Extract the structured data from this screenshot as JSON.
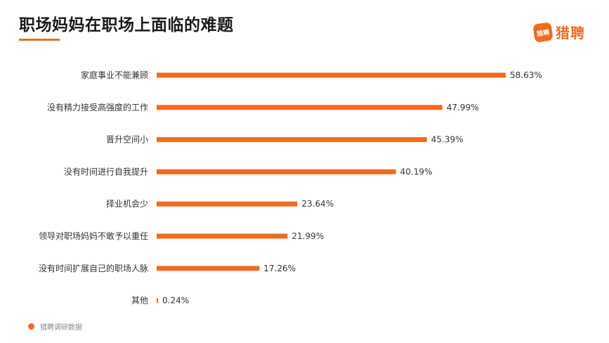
{
  "title": "职场妈妈在职场上面临的难题",
  "logo": {
    "badge_text": "猎聘",
    "text": "猎聘"
  },
  "footer": {
    "source": "猎聘调研数据"
  },
  "colors": {
    "accent": "#f26b1d",
    "title": "#1a1a1a",
    "label": "#333333"
  },
  "chart_data": {
    "type": "bar",
    "orientation": "horizontal",
    "title": "职场妈妈在职场上面临的难题",
    "xlabel": "",
    "ylabel": "",
    "unit": "%",
    "xlim": [
      0,
      58.63
    ],
    "grid": false,
    "legend": "none",
    "categories": [
      "家庭事业不能兼顾",
      "没有精力接受高强度的工作",
      "晋升空间小",
      "没有时间进行自我提升",
      "择业机会少",
      "领导对职场妈妈不敢予以重任",
      "没有时间扩展自己的职场人脉",
      "其他"
    ],
    "values": [
      58.63,
      47.99,
      45.39,
      40.19,
      23.64,
      21.99,
      17.26,
      0.24
    ],
    "value_labels": [
      "58.63%",
      "47.99%",
      "45.39%",
      "40.19%",
      "23.64%",
      "21.99%",
      "17.26%",
      "0.24%"
    ]
  }
}
